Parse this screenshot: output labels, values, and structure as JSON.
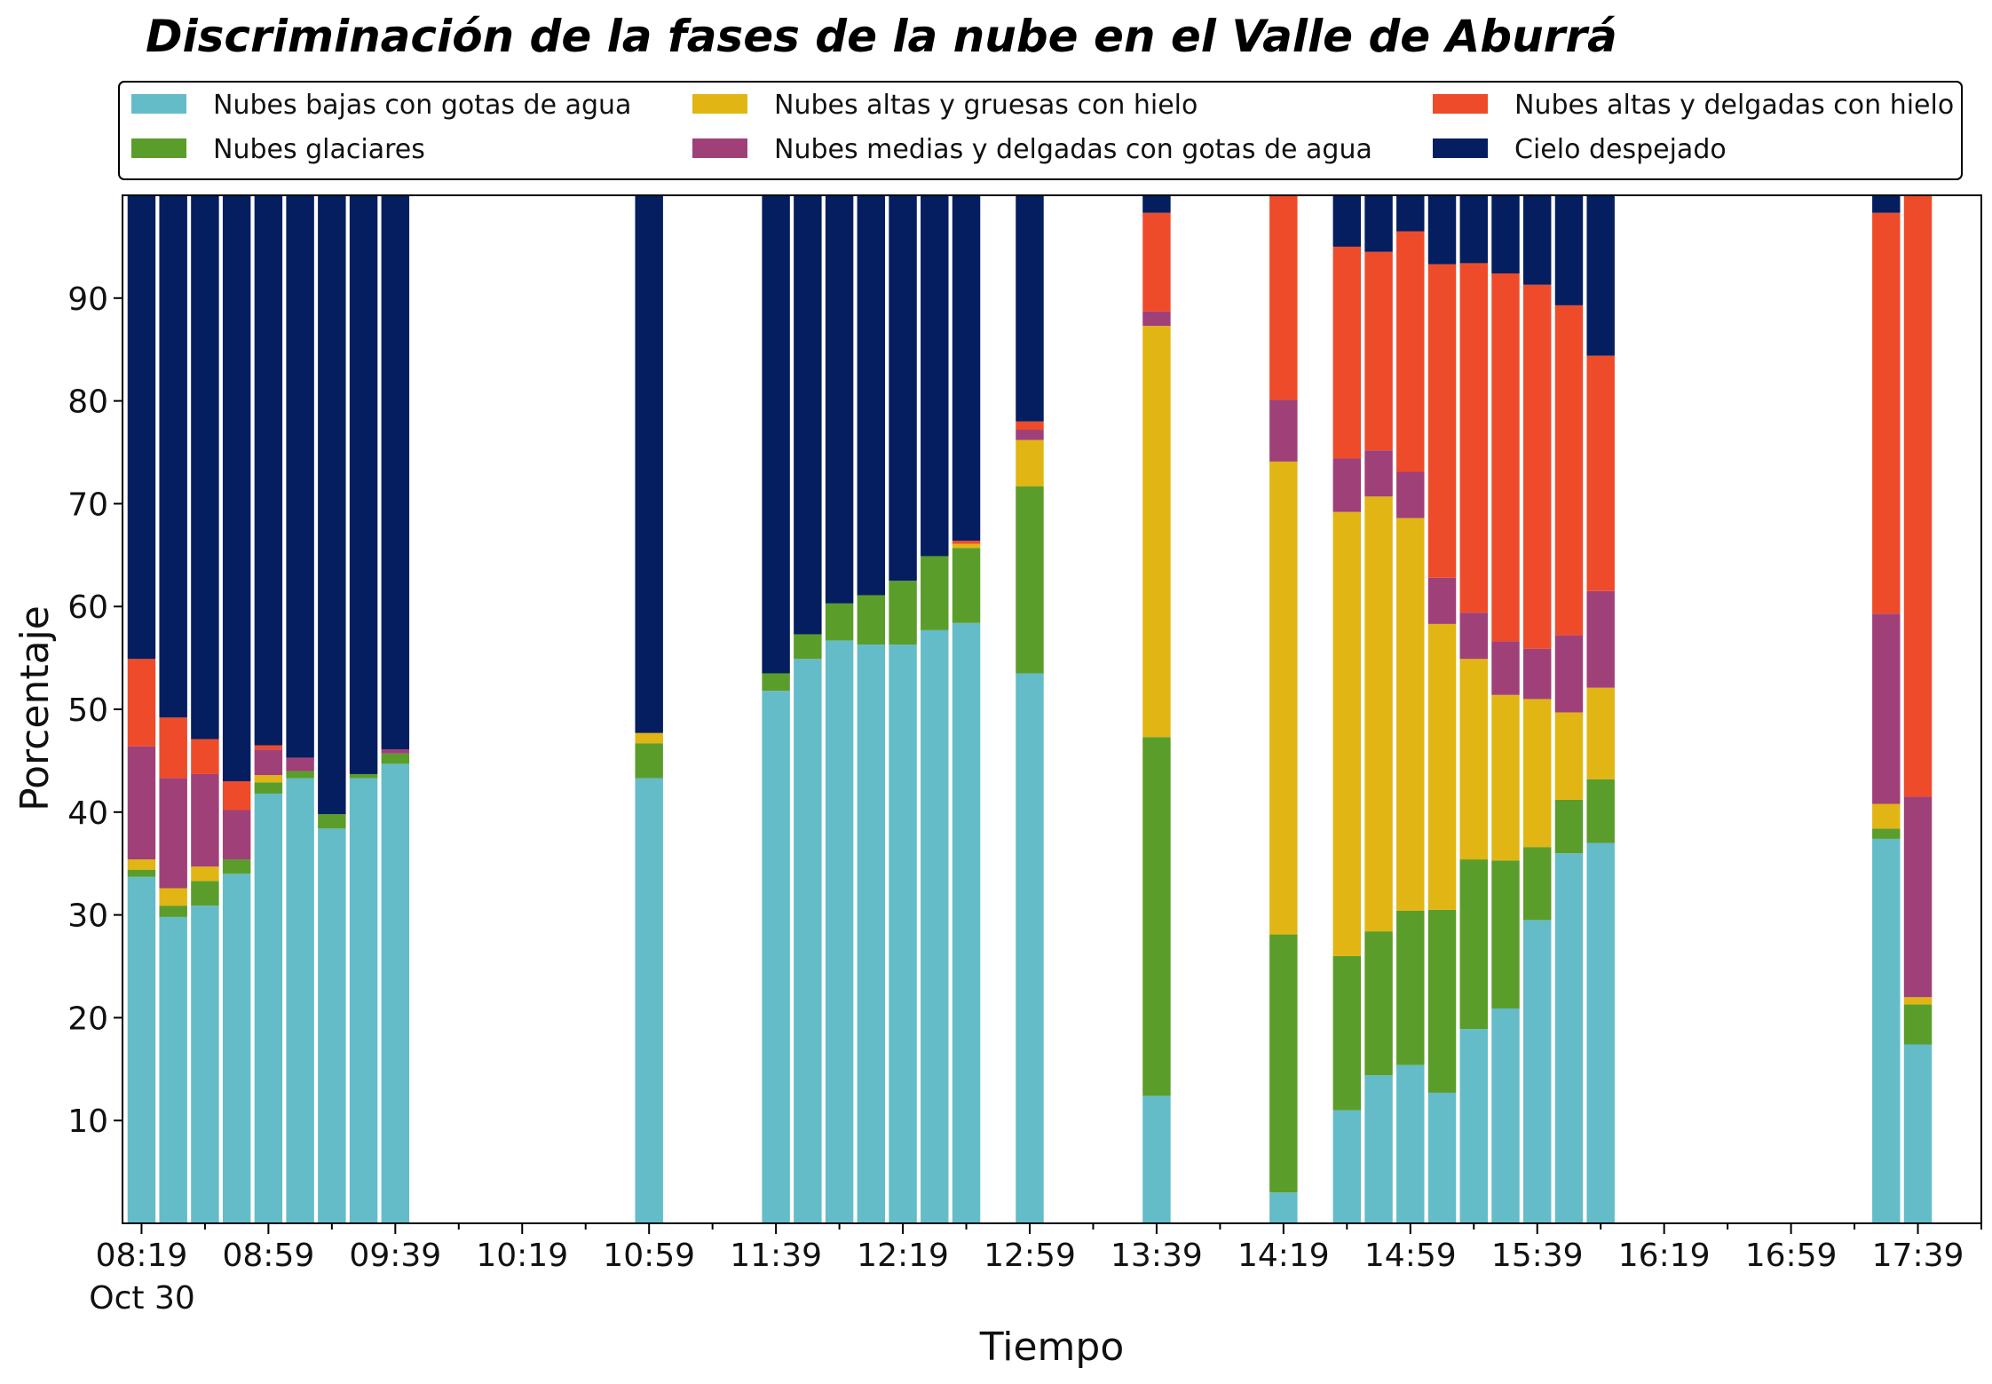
{
  "chart_data": {
    "type": "bar",
    "stacked": true,
    "title": "Discriminación de la fases de la nube en el Valle de Aburrá",
    "xlabel": "Tiempo",
    "ylabel": "Porcentaje",
    "date_label": "Oct 30",
    "ylim": [
      0,
      100
    ],
    "yticks": [
      10,
      20,
      30,
      40,
      50,
      60,
      70,
      80,
      90
    ],
    "x_tick_labels": [
      "08:19",
      "08:59",
      "09:39",
      "10:19",
      "10:59",
      "11:39",
      "12:19",
      "12:59",
      "13:39",
      "14:19",
      "14:59",
      "15:39",
      "16:19",
      "16:59",
      "17:39"
    ],
    "grid": false,
    "legend_position": "top",
    "series": [
      {
        "name": "Nubes bajas con gotas de agua",
        "color": "#64BCC9"
      },
      {
        "name": "Nubes glaciares",
        "color": "#5B9D2A"
      },
      {
        "name": "Nubes altas y gruesas con hielo",
        "color": "#E1B513"
      },
      {
        "name": "Nubes medias y delgadas con gotas de agua",
        "color": "#A04078"
      },
      {
        "name": "Nubes altas y delgadas con hielo",
        "color": "#EE4B2B"
      },
      {
        "name": "Cielo despejado",
        "color": "#041E5F"
      }
    ],
    "bars": [
      {
        "time": "08:19",
        "values": [
          33.7,
          0.7,
          1.0,
          11.0,
          8.5,
          45.1
        ]
      },
      {
        "time": "08:29",
        "values": [
          29.8,
          1.1,
          1.7,
          10.7,
          5.9,
          50.8
        ]
      },
      {
        "time": "08:39",
        "values": [
          30.9,
          2.4,
          1.4,
          9.0,
          3.4,
          52.9
        ]
      },
      {
        "time": "08:49",
        "values": [
          34.0,
          1.4,
          0.0,
          4.8,
          2.8,
          57.0
        ]
      },
      {
        "time": "08:59",
        "values": [
          41.8,
          1.1,
          0.7,
          2.5,
          0.4,
          53.5
        ]
      },
      {
        "time": "09:09",
        "values": [
          43.3,
          0.7,
          0.0,
          1.3,
          0.0,
          54.7
        ]
      },
      {
        "time": "09:19",
        "values": [
          38.4,
          1.4,
          0.0,
          0.0,
          0.0,
          60.2
        ]
      },
      {
        "time": "09:29",
        "values": [
          43.3,
          0.4,
          0.0,
          0.0,
          0.0,
          56.3
        ]
      },
      {
        "time": "09:39",
        "values": [
          44.7,
          1.0,
          0.0,
          0.4,
          0.0,
          53.9
        ]
      },
      {
        "time": "10:59",
        "values": [
          43.3,
          3.4,
          1.0,
          0.0,
          0.0,
          52.3
        ]
      },
      {
        "time": "11:39",
        "values": [
          51.8,
          1.7,
          0.0,
          0.0,
          0.0,
          46.5
        ]
      },
      {
        "time": "11:49",
        "values": [
          54.9,
          2.4,
          0.0,
          0.0,
          0.0,
          42.7
        ]
      },
      {
        "time": "11:59",
        "values": [
          56.7,
          3.6,
          0.0,
          0.0,
          0.0,
          39.7
        ]
      },
      {
        "time": "12:09",
        "values": [
          56.3,
          4.8,
          0.0,
          0.0,
          0.0,
          38.9
        ]
      },
      {
        "time": "12:19",
        "values": [
          56.3,
          6.2,
          0.0,
          0.0,
          0.0,
          37.5
        ]
      },
      {
        "time": "12:29",
        "values": [
          57.7,
          7.2,
          0.0,
          0.0,
          0.0,
          35.1
        ]
      },
      {
        "time": "12:39",
        "values": [
          58.4,
          7.3,
          0.4,
          0.0,
          0.3,
          33.6
        ]
      },
      {
        "time": "12:59",
        "values": [
          53.5,
          18.2,
          4.5,
          1.0,
          0.8,
          22.0
        ]
      },
      {
        "time": "13:39",
        "values": [
          12.4,
          34.9,
          40.0,
          1.4,
          9.6,
          1.7
        ]
      },
      {
        "time": "14:19",
        "values": [
          3.0,
          25.1,
          46.0,
          6.0,
          20.0,
          0.3
        ]
      },
      {
        "time": "14:39",
        "values": [
          11.0,
          15.0,
          43.2,
          5.2,
          20.6,
          5.0
        ]
      },
      {
        "time": "14:49",
        "values": [
          14.4,
          14.0,
          42.3,
          4.5,
          19.3,
          5.5
        ]
      },
      {
        "time": "14:59",
        "values": [
          15.4,
          15.0,
          38.2,
          4.5,
          23.4,
          3.5
        ]
      },
      {
        "time": "15:09",
        "values": [
          12.7,
          17.8,
          27.8,
          4.5,
          30.5,
          6.7
        ]
      },
      {
        "time": "15:19",
        "values": [
          18.9,
          16.5,
          19.5,
          4.5,
          34.0,
          6.6
        ]
      },
      {
        "time": "15:29",
        "values": [
          20.9,
          14.4,
          16.1,
          5.2,
          35.8,
          7.6
        ]
      },
      {
        "time": "15:39",
        "values": [
          29.5,
          7.1,
          14.4,
          4.9,
          35.4,
          8.7
        ]
      },
      {
        "time": "15:49",
        "values": [
          36.0,
          5.2,
          8.5,
          7.5,
          32.1,
          10.7
        ]
      },
      {
        "time": "15:59",
        "values": [
          37.0,
          6.2,
          8.9,
          9.4,
          22.9,
          15.6
        ]
      },
      {
        "time": "17:29",
        "values": [
          37.4,
          1.0,
          2.4,
          18.5,
          39.0,
          1.7
        ]
      },
      {
        "time": "17:39",
        "values": [
          17.4,
          3.9,
          0.7,
          19.5,
          58.5,
          0.0
        ]
      }
    ]
  }
}
